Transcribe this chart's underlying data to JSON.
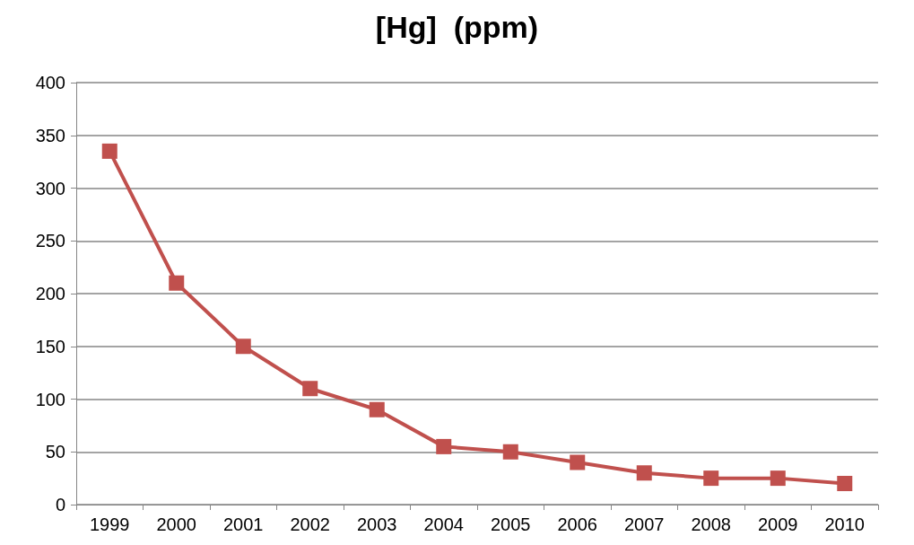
{
  "chart_data": {
    "type": "line",
    "title": "[Hg]  (ppm)",
    "categories": [
      "1999",
      "2000",
      "2001",
      "2002",
      "2003",
      "2004",
      "2005",
      "2006",
      "2007",
      "2008",
      "2009",
      "2010"
    ],
    "series": [
      {
        "color": "#c0504d",
        "values": [
          335,
          210,
          150,
          110,
          90,
          55,
          50,
          40,
          30,
          25,
          25,
          20
        ]
      }
    ],
    "ylim": [
      0,
      400
    ],
    "yticks": [
      0,
      50,
      100,
      150,
      200,
      250,
      300,
      350,
      400
    ],
    "grid": "y",
    "marker": "square",
    "line_style": "solid"
  }
}
